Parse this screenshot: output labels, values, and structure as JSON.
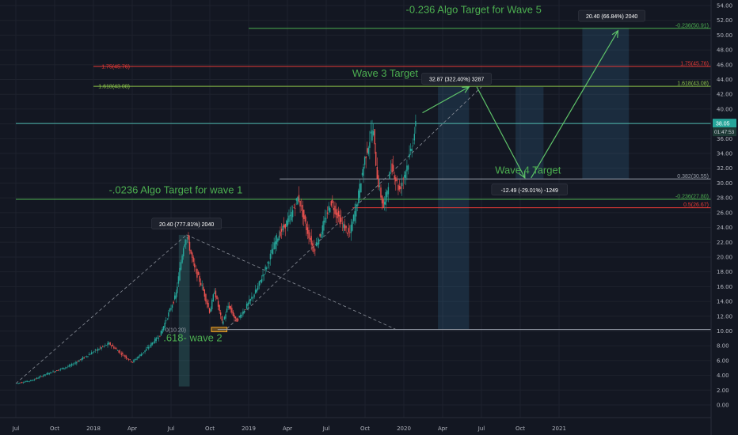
{
  "chart_data": {
    "type": "candlestick",
    "title": "",
    "y_axis": {
      "min": 0,
      "max": 54,
      "step": 2,
      "tick_labels": [
        "0.00",
        "2.00",
        "4.00",
        "6.00",
        "8.00",
        "10.00",
        "12.00",
        "14.00",
        "16.00",
        "18.00",
        "20.00",
        "22.00",
        "24.00",
        "26.00",
        "28.00",
        "30.00",
        "32.00",
        "34.00",
        "36.00",
        "38.00",
        "40.00",
        "42.00",
        "44.00",
        "46.00",
        "48.00",
        "50.00",
        "52.00",
        "54.00"
      ]
    },
    "x_axis": {
      "start": 2017.5,
      "end": 2021.65,
      "ticks": [
        {
          "label": "Jul",
          "t": 2017.5
        },
        {
          "label": "Oct",
          "t": 2017.75
        },
        {
          "label": "2018",
          "t": 2018.0
        },
        {
          "label": "Apr",
          "t": 2018.25
        },
        {
          "label": "Jul",
          "t": 2018.5
        },
        {
          "label": "Oct",
          "t": 2018.75
        },
        {
          "label": "2019",
          "t": 2019.0
        },
        {
          "label": "Apr",
          "t": 2019.25
        },
        {
          "label": "Jul",
          "t": 2019.5
        },
        {
          "label": "Oct",
          "t": 2019.75
        },
        {
          "label": "2020",
          "t": 2020.0
        },
        {
          "label": "Apr",
          "t": 2020.25
        },
        {
          "label": "Jul",
          "t": 2020.5
        },
        {
          "label": "Oct",
          "t": 2020.75
        },
        {
          "label": "2021",
          "t": 2021.0
        }
      ]
    },
    "price_path": [
      [
        2017.5,
        2.9
      ],
      [
        2017.6,
        3.3
      ],
      [
        2017.7,
        4.2
      ],
      [
        2017.85,
        5.3
      ],
      [
        2018.0,
        7.2
      ],
      [
        2018.1,
        8.3
      ],
      [
        2018.2,
        6.6
      ],
      [
        2018.25,
        5.8
      ],
      [
        2018.33,
        7.3
      ],
      [
        2018.43,
        9.5
      ],
      [
        2018.53,
        14.8
      ],
      [
        2018.58,
        21.5
      ],
      [
        2018.6,
        23.0
      ],
      [
        2018.65,
        18.5
      ],
      [
        2018.7,
        16.0
      ],
      [
        2018.75,
        12.5
      ],
      [
        2018.78,
        15.5
      ],
      [
        2018.83,
        11.0
      ],
      [
        2018.87,
        13.5
      ],
      [
        2018.92,
        11.3
      ],
      [
        2018.97,
        12.8
      ],
      [
        2019.05,
        15.5
      ],
      [
        2019.12,
        19.0
      ],
      [
        2019.18,
        22.5
      ],
      [
        2019.27,
        25.5
      ],
      [
        2019.32,
        28.2
      ],
      [
        2019.37,
        24.0
      ],
      [
        2019.42,
        21.0
      ],
      [
        2019.47,
        23.5
      ],
      [
        2019.53,
        27.5
      ],
      [
        2019.6,
        24.5
      ],
      [
        2019.65,
        23.0
      ],
      [
        2019.7,
        27.5
      ],
      [
        2019.75,
        33.5
      ],
      [
        2019.8,
        37.5
      ],
      [
        2019.83,
        30.5
      ],
      [
        2019.87,
        26.5
      ],
      [
        2019.92,
        32.5
      ],
      [
        2019.97,
        29.0
      ],
      [
        2020.03,
        33.0
      ],
      [
        2020.08,
        38.05
      ]
    ],
    "levels": [
      {
        "label": "-0.236(50.91)",
        "value": 50.91,
        "color": "#4caf50",
        "from": 2019.0
      },
      {
        "label": "1.75(45.76)",
        "value": 45.76,
        "color": "#e53935",
        "from": 2018.0
      },
      {
        "label": "1.618(43.08)",
        "value": 43.08,
        "color": "#8bc34a",
        "from": 2018.0
      },
      {
        "label": "",
        "value": 38.05,
        "color": "#4db6ac",
        "from": 2017.5
      },
      {
        "label": "0.382(30.55)",
        "value": 30.55,
        "color": "#9aa0ab",
        "from": 2019.2
      },
      {
        "label": "-0.236(27.80)",
        "value": 27.8,
        "color": "#4caf50",
        "from": 2017.5
      },
      {
        "label": "0.5(26.67)",
        "value": 26.67,
        "color": "#e53935",
        "from": 2019.67
      },
      {
        "label": "",
        "value": 10.2,
        "color": "#9aa0ab",
        "from": 2018.8
      }
    ],
    "last_price": {
      "label": "38.05",
      "countdown": "01:47:53",
      "value": 38.05
    },
    "annotations": [
      {
        "text": "-0.236 Algo Target for Wave 5",
        "t": 2020.45,
        "v": 53.0,
        "color": "#4caf50",
        "size": 13
      },
      {
        "text": "Wave 3 Target",
        "t": 2019.88,
        "v": 44.4,
        "color": "#4caf50",
        "size": 13
      },
      {
        "text": "Wave 4 Target",
        "t": 2020.8,
        "v": 31.3,
        "color": "#4caf50",
        "size": 13
      },
      {
        "text": "-.0236 Algo Target for wave 1",
        "t": 2018.53,
        "v": 28.6,
        "color": "#4caf50",
        "size": 13
      },
      {
        "text": ".618- wave 2",
        "t": 2018.64,
        "v": 8.6,
        "color": "#4caf50",
        "size": 13
      },
      {
        "text": "0(10.20)",
        "t": 2018.53,
        "v": 9.9,
        "color": "#9aa0ab",
        "size": 7
      }
    ],
    "measure_labels": [
      {
        "text": "20.40 (777.81%) 2040",
        "t": 2018.6,
        "v": 24.4
      },
      {
        "text": "32.87 (322.40%) 3287",
        "t": 2020.34,
        "v": 44.0
      },
      {
        "text": "-12.49 (-29.01%) -1249",
        "t": 2020.81,
        "v": 29.0
      },
      {
        "text": "20.40 (66.84%) 2040",
        "t": 2021.34,
        "v": 52.5
      }
    ],
    "measure_boxes": [
      {
        "t1": 2018.55,
        "t2": 2018.62,
        "v1": 2.5,
        "v2": 23.0,
        "color": "#4db6ac"
      },
      {
        "t1": 2020.22,
        "t2": 2020.42,
        "v1": 10.2,
        "v2": 43.08,
        "color": "#3a7ca5"
      },
      {
        "t1": 2020.72,
        "t2": 2020.9,
        "v1": 30.5,
        "v2": 43.0,
        "color": "#3a7ca5"
      },
      {
        "t1": 2021.15,
        "t2": 2021.45,
        "v1": 30.5,
        "v2": 51.0,
        "color": "#3a7ca5"
      }
    ],
    "dashed_trends": [
      {
        "points": [
          [
            2017.5,
            2.9
          ],
          [
            2018.6,
            23.0
          ]
        ]
      },
      {
        "points": [
          [
            2018.6,
            23.0
          ],
          [
            2019.95,
            10.2
          ]
        ]
      },
      {
        "points": [
          [
            2018.86,
            10.3
          ],
          [
            2020.5,
            43.0
          ]
        ]
      }
    ],
    "projection_arrows": [
      {
        "points": [
          [
            2020.12,
            39.5
          ],
          [
            2020.42,
            43.0
          ]
        ]
      },
      {
        "points": [
          [
            2020.47,
            43.0
          ],
          [
            2020.78,
            30.7
          ]
        ]
      },
      {
        "points": [
          [
            2020.82,
            30.7
          ],
          [
            2021.38,
            50.6
          ]
        ]
      }
    ],
    "wave2_box": {
      "t1": 2018.76,
      "t2": 2018.86,
      "v1": 9.9,
      "v2": 10.5,
      "color": "#f5a623"
    }
  }
}
